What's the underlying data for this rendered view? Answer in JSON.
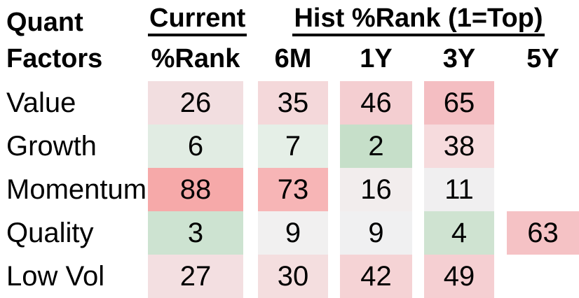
{
  "title": {
    "line1": "Quant",
    "line2": "Factors"
  },
  "header": {
    "current_group": "Current",
    "hist_group": "Hist %Rank (1=Top)",
    "columns": [
      "%Rank",
      "6M",
      "1Y",
      "3Y",
      "5Y"
    ]
  },
  "colors": {
    "background": "#ffffff",
    "text": "#000000",
    "green_strong": "#c6dfc9",
    "red_strong": "#f6a9a9",
    "neutral": "#f0eff0"
  },
  "chart_data": {
    "type": "heatmap",
    "title": "Quant Factors percentile rank heatmap",
    "legend_note": "1=Top",
    "row_header": "Quant Factors",
    "col_groups": [
      {
        "label": "Current",
        "columns": [
          "%Rank"
        ]
      },
      {
        "label": "Hist %Rank (1=Top)",
        "columns": [
          "6M",
          "1Y",
          "3Y",
          "5Y"
        ]
      }
    ],
    "columns": [
      "%Rank",
      "6M",
      "1Y",
      "3Y",
      "5Y"
    ],
    "rows": [
      {
        "label": "Value",
        "values": [
          26,
          35,
          46,
          65,
          null
        ],
        "colors": [
          "#f2dee0",
          "#f4d8da",
          "#f4ced1",
          "#f4bec2",
          null
        ]
      },
      {
        "label": "Growth",
        "values": [
          6,
          7,
          2,
          38,
          null
        ],
        "colors": [
          "#e1ece3",
          "#e5efe7",
          "#c6dfc9",
          "#f6dbdd",
          null
        ]
      },
      {
        "label": "Momentum",
        "values": [
          88,
          73,
          16,
          11,
          null
        ],
        "colors": [
          "#f6a9a9",
          "#f7b5b6",
          "#f2eded",
          "#f0eff0",
          null
        ]
      },
      {
        "label": "Quality",
        "values": [
          3,
          9,
          9,
          4,
          63
        ],
        "colors": [
          "#cde3d1",
          "#f1f0f0",
          "#f0f0f1",
          "#cfe3d1",
          "#f5c2c5"
        ]
      },
      {
        "label": "Low Vol",
        "values": [
          27,
          30,
          42,
          49,
          null
        ],
        "colors": [
          "#f3dfe1",
          "#f4dedf",
          "#f5d3d5",
          "#f5cfd2",
          null
        ]
      }
    ],
    "color_scale": "green = low %rank (top), white = neutral, red = high %rank (bottom)"
  }
}
